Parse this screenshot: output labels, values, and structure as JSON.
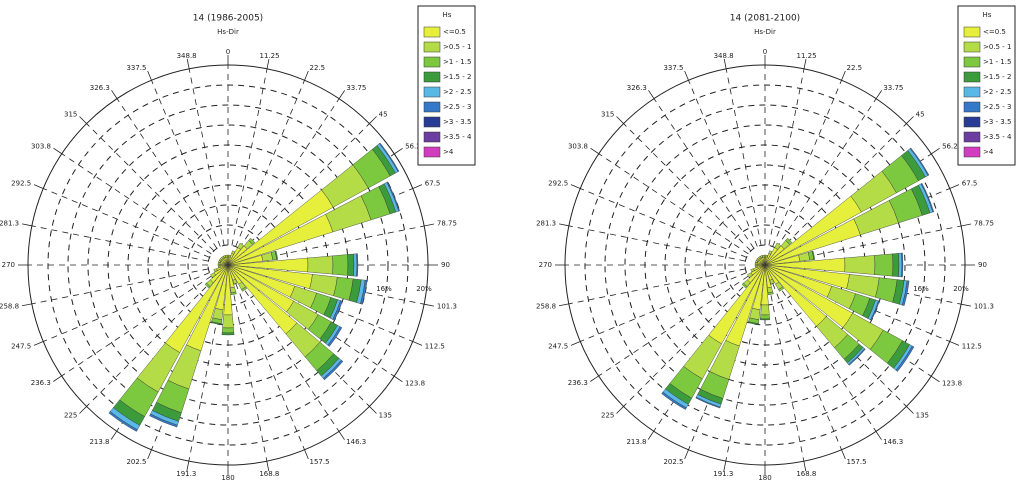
{
  "chart_data": [
    {
      "type": "rose",
      "title": "14 (1986-2005)",
      "subtitle": "Hs-Dir",
      "legend_title": "Hs",
      "categories": [
        0,
        11.25,
        22.5,
        33.75,
        45,
        56.25,
        67.5,
        78.75,
        90,
        101.3,
        112.5,
        123.8,
        135,
        146.3,
        157.5,
        168.8,
        180,
        191.3,
        202.5,
        213.8,
        225,
        236.3,
        247.5,
        258.8,
        270,
        281.3,
        292.5,
        303.8,
        315,
        326.3,
        337.5,
        348.8
      ],
      "rlim": [
        0,
        20
      ],
      "rgrid": [
        2,
        4,
        6,
        8,
        10,
        12,
        14,
        16,
        18
      ],
      "rticks": [
        {
          "value": 16,
          "label": "16%"
        },
        {
          "value": 20,
          "label": "20%"
        }
      ],
      "series": [
        {
          "name": "<=0.5",
          "color": "#e6f03c",
          "values": [
            0.8,
            0.8,
            1.2,
            2,
            2.5,
            12,
            11,
            3.5,
            8,
            8.5,
            7,
            7.5,
            9,
            2.2,
            1.6,
            2.3,
            5,
            4.5,
            9,
            10,
            2.3,
            1.6,
            1.2,
            0.8,
            0.8,
            0.8,
            0.8,
            0.8,
            0.8,
            0.8,
            0.8,
            0.8
          ]
        },
        {
          "name": ">0.5 - 1",
          "color": "#b4dc46",
          "values": [
            0.2,
            0.2,
            0.3,
            0.5,
            0.7,
            4,
            4,
            1,
            2.5,
            2.5,
            2.3,
            2.8,
            3,
            0.6,
            0.4,
            0.5,
            1.3,
            1,
            4,
            4.5,
            0.5,
            0.4,
            0.3,
            0.2,
            0.2,
            0.2,
            0.2,
            0.2,
            0.2,
            0.2,
            0.2,
            0.2
          ]
        },
        {
          "name": ">1 - 1.5",
          "color": "#7cc83e",
          "values": [
            0,
            0,
            0,
            0,
            0.3,
            2.5,
            2,
            0.4,
            1.5,
            1.6,
            1.5,
            1.5,
            1.8,
            0.2,
            0,
            0.2,
            0.5,
            0.4,
            2.5,
            2.8,
            0.2,
            0,
            0,
            0,
            0,
            0,
            0,
            0,
            0,
            0,
            0,
            0
          ]
        },
        {
          "name": ">1.5 - 2",
          "color": "#3c9c3c",
          "values": [
            0,
            0,
            0,
            0,
            0,
            0.6,
            0.6,
            0.1,
            0.6,
            0.8,
            0.7,
            0.7,
            0.7,
            0,
            0,
            0,
            0.2,
            0.1,
            0.9,
            1,
            0,
            0,
            0,
            0,
            0,
            0,
            0,
            0,
            0,
            0,
            0,
            0
          ]
        },
        {
          "name": ">2 - 2.5",
          "color": "#5ab8e6",
          "values": [
            0,
            0,
            0,
            0,
            0,
            0.3,
            0.3,
            0,
            0.3,
            0.4,
            0.3,
            0.3,
            0.3,
            0,
            0,
            0,
            0,
            0,
            0.4,
            0.5,
            0,
            0,
            0,
            0,
            0,
            0,
            0,
            0,
            0,
            0,
            0,
            0
          ]
        },
        {
          "name": ">2.5 - 3",
          "color": "#3478c8",
          "values": [
            0,
            0,
            0,
            0,
            0,
            0.1,
            0.1,
            0,
            0.1,
            0.2,
            0.2,
            0.2,
            0.2,
            0,
            0,
            0,
            0,
            0,
            0.2,
            0.2,
            0,
            0,
            0,
            0,
            0,
            0,
            0,
            0,
            0,
            0,
            0,
            0
          ]
        },
        {
          "name": ">3 - 3.5",
          "color": "#283c96",
          "values": [
            0,
            0,
            0,
            0,
            0,
            0,
            0,
            0,
            0,
            0,
            0,
            0,
            0,
            0,
            0,
            0,
            0,
            0,
            0,
            0,
            0,
            0,
            0,
            0,
            0,
            0,
            0,
            0,
            0,
            0,
            0,
            0
          ]
        },
        {
          "name": ">3.5 - 4",
          "color": "#6c3ca0",
          "values": [
            0,
            0,
            0,
            0,
            0,
            0,
            0,
            0,
            0,
            0,
            0,
            0,
            0,
            0,
            0,
            0,
            0,
            0,
            0,
            0,
            0,
            0,
            0,
            0,
            0,
            0,
            0,
            0,
            0,
            0,
            0,
            0
          ]
        },
        {
          "name": ">4",
          "color": "#d23cbe",
          "values": [
            0,
            0,
            0,
            0,
            0,
            0,
            0,
            0,
            0,
            0,
            0,
            0,
            0,
            0,
            0,
            0,
            0,
            0,
            0,
            0,
            0,
            0,
            0,
            0,
            0,
            0,
            0,
            0,
            0,
            0,
            0,
            0
          ]
        }
      ]
    },
    {
      "type": "rose",
      "title": "14 (2081-2100)",
      "subtitle": "Hs-Dir",
      "legend_title": "Hs",
      "categories": [
        0,
        11.25,
        22.5,
        33.75,
        45,
        56.25,
        67.5,
        78.75,
        90,
        101.3,
        112.5,
        123.8,
        135,
        146.3,
        157.5,
        168.8,
        180,
        191.3,
        202.5,
        213.8,
        225,
        236.3,
        247.5,
        258.8,
        270,
        281.3,
        292.5,
        303.8,
        315,
        326.3,
        337.5,
        348.8
      ],
      "rlim": [
        0,
        20
      ],
      "rgrid": [
        2,
        4,
        6,
        8,
        10,
        12,
        14,
        16,
        18
      ],
      "rticks": [
        {
          "value": 16,
          "label": "16%"
        },
        {
          "value": 20,
          "label": "20%"
        }
      ],
      "series": [
        {
          "name": "<=0.5",
          "color": "#e6f03c",
          "values": [
            0.8,
            0.8,
            1.2,
            2,
            2.5,
            11,
            10,
            3.5,
            8,
            8.5,
            7,
            10,
            8,
            2.2,
            1.6,
            2.3,
            4,
            4.5,
            8.5,
            9,
            2.3,
            1.6,
            1.2,
            0.8,
            0.8,
            0.8,
            0.8,
            0.8,
            0.8,
            0.8,
            0.8,
            0.8
          ]
        },
        {
          "name": ">0.5 - 1",
          "color": "#b4dc46",
          "values": [
            0.2,
            0.2,
            0.3,
            0.5,
            0.7,
            4,
            4,
            1,
            3,
            3,
            2.5,
            3.5,
            2.8,
            0.6,
            0.4,
            0.5,
            1,
            1,
            3.5,
            4,
            0.5,
            0.4,
            0.3,
            0.2,
            0.2,
            0.2,
            0.2,
            0.2,
            0.2,
            0.2,
            0.2,
            0.2
          ]
        },
        {
          "name": ">1 - 1.5",
          "color": "#7cc83e",
          "values": [
            0,
            0,
            0,
            0,
            0.3,
            2.5,
            2.5,
            0.4,
            1.8,
            1.8,
            1.5,
            2.2,
            1.5,
            0.2,
            0,
            0.2,
            0.4,
            0.4,
            2,
            2.2,
            0.2,
            0,
            0,
            0,
            0,
            0,
            0,
            0,
            0,
            0,
            0,
            0
          ]
        },
        {
          "name": ">1.5 - 2",
          "color": "#3c9c3c",
          "values": [
            0,
            0,
            0,
            0,
            0,
            0.8,
            0.8,
            0.1,
            0.6,
            0.7,
            0.6,
            0.8,
            0.5,
            0,
            0,
            0,
            0.1,
            0.1,
            0.6,
            0.7,
            0,
            0,
            0,
            0,
            0,
            0,
            0,
            0,
            0,
            0,
            0,
            0
          ]
        },
        {
          "name": ">2 - 2.5",
          "color": "#5ab8e6",
          "values": [
            0,
            0,
            0,
            0,
            0,
            0.3,
            0.3,
            0,
            0.3,
            0.3,
            0.3,
            0.3,
            0.2,
            0,
            0,
            0,
            0,
            0,
            0.3,
            0.4,
            0,
            0,
            0,
            0,
            0,
            0,
            0,
            0,
            0,
            0,
            0,
            0
          ]
        },
        {
          "name": ">2.5 - 3",
          "color": "#3478c8",
          "values": [
            0,
            0,
            0,
            0,
            0,
            0.1,
            0.1,
            0,
            0.1,
            0.2,
            0.1,
            0.2,
            0.1,
            0,
            0,
            0,
            0,
            0,
            0.1,
            0.2,
            0,
            0,
            0,
            0,
            0,
            0,
            0,
            0,
            0,
            0,
            0,
            0
          ]
        },
        {
          "name": ">3 - 3.5",
          "color": "#283c96",
          "values": [
            0,
            0,
            0,
            0,
            0,
            0,
            0,
            0,
            0,
            0,
            0,
            0,
            0,
            0,
            0,
            0,
            0,
            0,
            0,
            0,
            0,
            0,
            0,
            0,
            0,
            0,
            0,
            0,
            0,
            0,
            0,
            0
          ]
        },
        {
          "name": ">3.5 - 4",
          "color": "#6c3ca0",
          "values": [
            0,
            0,
            0,
            0,
            0,
            0,
            0,
            0,
            0,
            0,
            0,
            0,
            0,
            0,
            0,
            0,
            0,
            0,
            0,
            0,
            0,
            0,
            0,
            0,
            0,
            0,
            0,
            0,
            0,
            0,
            0,
            0
          ]
        },
        {
          "name": ">4",
          "color": "#d23cbe",
          "values": [
            0,
            0,
            0,
            0,
            0,
            0,
            0,
            0,
            0,
            0,
            0,
            0,
            0,
            0,
            0,
            0,
            0,
            0,
            0,
            0,
            0,
            0,
            0,
            0,
            0,
            0,
            0,
            0,
            0,
            0,
            0,
            0
          ]
        }
      ]
    }
  ]
}
